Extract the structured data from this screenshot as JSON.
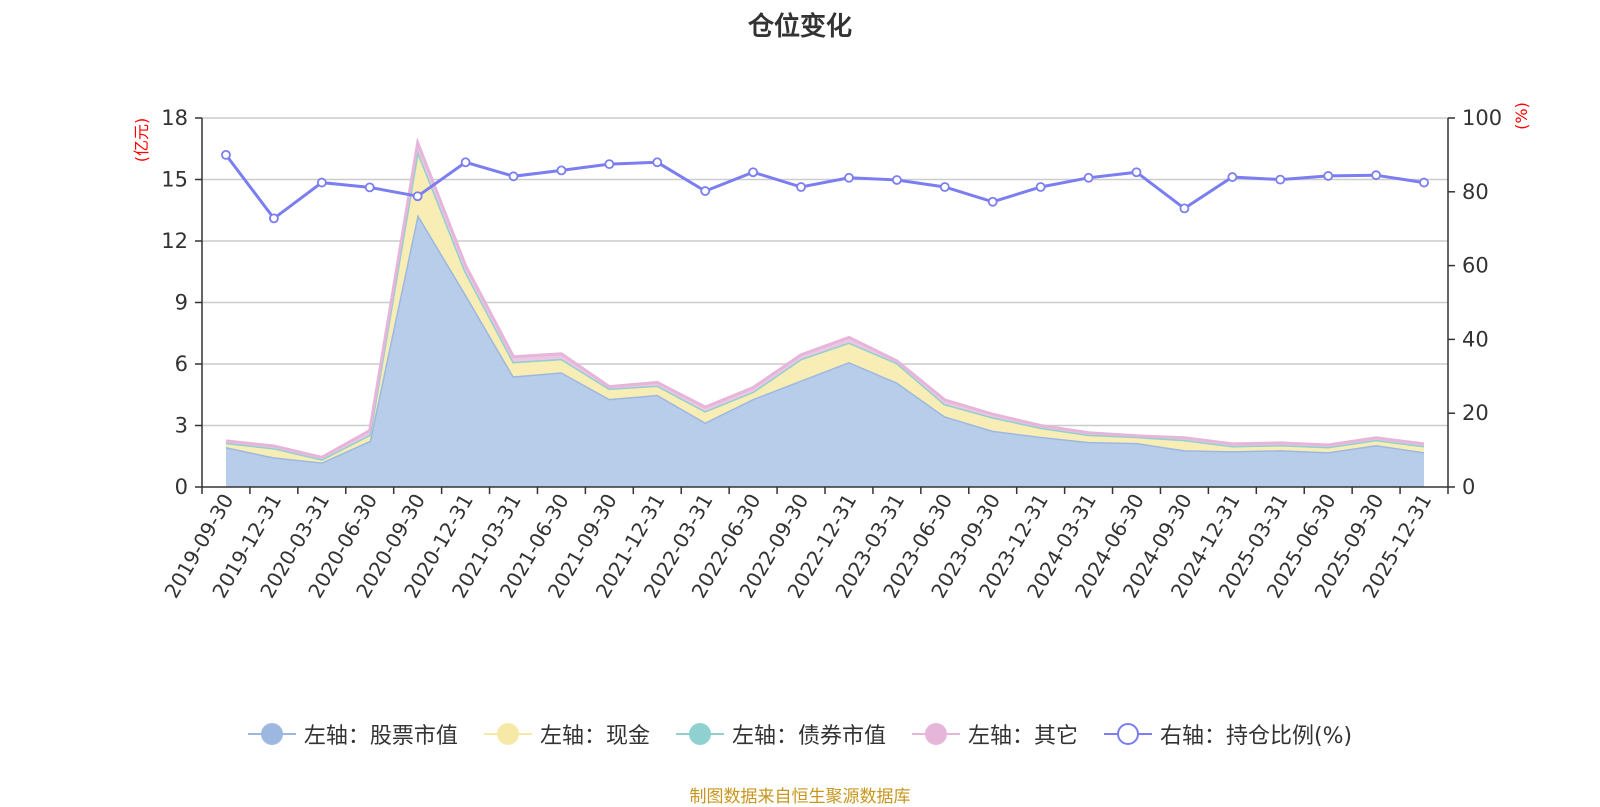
{
  "chart_data": {
    "type": "area",
    "title": "仓位变化",
    "left_unit": "(亿元)",
    "right_unit": "(%)",
    "categories": [
      "2019-09-30",
      "2019-12-31",
      "2020-03-31",
      "2020-06-30",
      "2020-09-30",
      "2020-12-31",
      "2021-03-31",
      "2021-06-30",
      "2021-09-30",
      "2021-12-31",
      "2022-03-31",
      "2022-06-30",
      "2022-09-30",
      "2022-12-31",
      "2023-03-31",
      "2023-06-30",
      "2023-09-30",
      "2023-12-31",
      "2024-03-31",
      "2024-06-30",
      "2024-09-30",
      "2024-12-31",
      "2025-03-31",
      "2025-06-30",
      "2025-09-30",
      "2025-12-31"
    ],
    "left_axis": {
      "min": 0,
      "max": 18,
      "ticks": [
        "0",
        "3",
        "6",
        "9",
        "12",
        "15",
        "18"
      ]
    },
    "right_axis": {
      "min": 0,
      "max": 100,
      "ticks": [
        "0",
        "20",
        "40",
        "60",
        "80",
        "100"
      ]
    },
    "stacked_series": [
      {
        "name": "左轴：股票市值",
        "color": "#9db8e0",
        "fill": "#b7cdea",
        "values": [
          1.95,
          1.45,
          1.2,
          2.25,
          13.3,
          9.4,
          5.4,
          5.6,
          4.3,
          4.5,
          3.15,
          4.3,
          5.2,
          6.1,
          5.1,
          3.45,
          2.75,
          2.45,
          2.2,
          2.15,
          1.8,
          1.75,
          1.8,
          1.7,
          2.05,
          1.7
        ]
      },
      {
        "name": "左轴：现金",
        "color": "#f6e8a6",
        "fill": "#f9edb6",
        "values": [
          0.2,
          0.45,
          0.15,
          0.3,
          3.1,
          1.1,
          0.7,
          0.65,
          0.5,
          0.45,
          0.55,
          0.35,
          1.05,
          0.95,
          0.95,
          0.6,
          0.65,
          0.45,
          0.35,
          0.3,
          0.5,
          0.25,
          0.25,
          0.25,
          0.25,
          0.3
        ]
      },
      {
        "name": "左轴：债券市值",
        "color": "#8fd0d0",
        "fill": "#a8dcdc",
        "values": [
          0,
          0,
          0,
          0,
          0,
          0,
          0,
          0,
          0,
          0,
          0,
          0,
          0,
          0,
          0,
          0,
          0,
          0,
          0,
          0,
          0,
          0,
          0,
          0,
          0,
          0
        ]
      },
      {
        "name": "左轴：其它",
        "color": "#e6b5da",
        "fill": "#edc6e4",
        "values": [
          0.1,
          0.1,
          0.1,
          0.2,
          0.4,
          0.3,
          0.25,
          0.25,
          0.1,
          0.15,
          0.2,
          0.2,
          0.2,
          0.25,
          0.1,
          0.2,
          0.15,
          0.1,
          0.1,
          0.05,
          0.1,
          0.1,
          0.1,
          0.1,
          0.1,
          0.1
        ]
      }
    ],
    "line_series": {
      "name": "右轴：持仓比例(%)",
      "color": "#7b7ef0",
      "values": [
        90,
        72.8,
        82.5,
        81.2,
        78.8,
        88,
        84.2,
        85.8,
        87.5,
        88,
        80.2,
        85.3,
        81.3,
        83.8,
        83.2,
        81.3,
        77.3,
        81.3,
        83.8,
        85.3,
        75.5,
        84,
        83.3,
        84.3,
        84.5,
        82.5
      ]
    },
    "legend": [
      "左轴：股票市值",
      "左轴：现金",
      "左轴：债券市值",
      "左轴：其它",
      "右轴：持仓比例(%)"
    ],
    "source_note": "制图数据来自恒生聚源数据库"
  }
}
